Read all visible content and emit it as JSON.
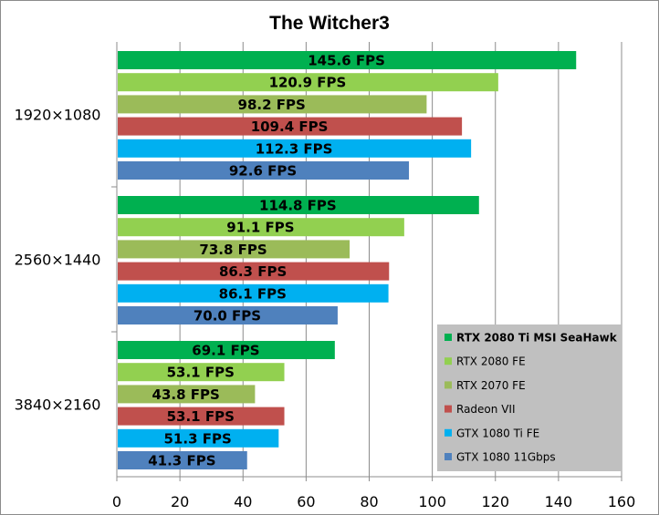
{
  "chart_data": {
    "type": "bar",
    "orientation": "horizontal",
    "title": "The Witcher3",
    "categories": [
      "1920×1080",
      "2560×1440",
      "3840×2160"
    ],
    "series": [
      {
        "name": "RTX 2080 Ti MSI SeaHawk",
        "color": "#00b050",
        "values": [
          145.6,
          114.8,
          69.1
        ],
        "labels": [
          "145.6 FPS",
          "114.8 FPS",
          "69.1 FPS"
        ],
        "legend_bold": true
      },
      {
        "name": "RTX 2080 FE",
        "color": "#92d050",
        "values": [
          120.9,
          91.1,
          53.1
        ],
        "labels": [
          "120.9 FPS",
          "91.1 FPS",
          "53.1 FPS"
        ]
      },
      {
        "name": "RTX 2070 FE",
        "color": "#9bbb59",
        "values": [
          98.2,
          73.8,
          43.8
        ],
        "labels": [
          "98.2 FPS",
          "73.8 FPS",
          "43.8 FPS"
        ]
      },
      {
        "name": "Radeon VII",
        "color": "#c0504d",
        "values": [
          109.4,
          86.3,
          53.1
        ],
        "labels": [
          "109.4 FPS",
          "86.3 FPS",
          "53.1 FPS"
        ]
      },
      {
        "name": "GTX 1080 Ti FE",
        "color": "#00b0f0",
        "values": [
          112.3,
          86.1,
          51.3
        ],
        "labels": [
          "112.3 FPS",
          "86.1 FPS",
          "51.3 FPS"
        ]
      },
      {
        "name": "GTX 1080 11Gbps",
        "color": "#4f81bd",
        "values": [
          92.6,
          70.0,
          41.3
        ],
        "labels": [
          "92.6 FPS",
          "70.0 FPS",
          "41.3 FPS"
        ]
      }
    ],
    "xlim": [
      0,
      160
    ],
    "xticks": [
      "0",
      "20",
      "40",
      "60",
      "80",
      "100",
      "120",
      "140",
      "160"
    ],
    "grid": "vertical",
    "legend": {
      "position": "bottom-right",
      "background": "#c0c0c0"
    }
  }
}
